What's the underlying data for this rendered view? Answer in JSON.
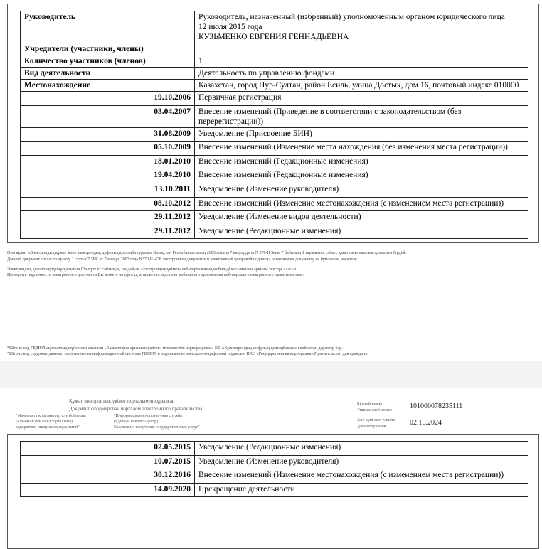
{
  "page1": {
    "info_rows": [
      {
        "label": "Руководитель",
        "value": [
          "Руководитель, назначенный (избранный) уполномоченным органом юридического лица",
          "12 июля 2015 года",
          "КУЗЬМЕНКО ЕВГЕНИЯ ГЕННАДЬЕВНА"
        ]
      },
      {
        "label": "Учредители (участники, члены)",
        "value": [
          ""
        ]
      },
      {
        "label": "Количество участников (членов)",
        "value": [
          "1"
        ]
      },
      {
        "label": "Вид деятельности",
        "value": [
          "Деятельность по управлению фондами"
        ]
      },
      {
        "label": "Местонахождение",
        "value": [
          "Казахстан, город Нур-Султан, район Есиль, улица Достык, дом 16, почтовый индекс 010000"
        ]
      }
    ],
    "history": [
      {
        "date": "19.10.2006",
        "event": "Первичная регистрация"
      },
      {
        "date": "03.04.2007",
        "event": "Внесение изменений (Приведение в соответствии с законодательством (без перерегистрации))"
      },
      {
        "date": "31.08.2009",
        "event": "Уведомление (Присвоение БИН)"
      },
      {
        "date": "05.10.2009",
        "event": "Внесение изменений (Изменение места нахождения (без изменения места регистрации))"
      },
      {
        "date": "18.01.2010",
        "event": "Внесение изменений (Редакционные изменения)"
      },
      {
        "date": "19.04.2010",
        "event": "Внесение изменений (Редакционные изменения)"
      },
      {
        "date": "13.10.2011",
        "event": "Уведомление (Изменение руководителя)"
      },
      {
        "date": "08.10.2012",
        "event": "Внесение изменений (Изменение местонахождения (с изменением места регистрации))"
      },
      {
        "date": "29.11.2012",
        "event": "Уведомление (Изменение видов деятельности)"
      },
      {
        "date": "29.11.2012",
        "event": "Уведомление (Редакционные изменения)"
      }
    ],
    "notes": [
      "Осы құжат «Электрондық құжат және электрондық цифрлық қолтаңба туралы» Қазақстан Республикасының 2003 жылғы 7 қаңтардағы N 370-II Заңы 7 бабының 1 тармағына сәйкес қағаз тасығыштағы құжатпен бірдей.",
      "Данный документ согласно пункту 1 статьи 7 ЗРК от 7 января 2003 года N370-II «Об электронном документе и электронной цифровой подписи» равнозначен документу на бумажном носителе.",
      "Электрондық құжаттың түпнұсқалығын Сіз egov.kz сайтында, сондай-ақ «электрондық үкімет» веб-порталының мобильді қосымшасы арқылы тексере аласыз.",
      "Проверить подлинность электронного документа Вы можете на egov.kz, а также посредством мобильного приложения веб-портала «электронного правительства»."
    ],
    "footnotes": [
      "*Штрих-код ГБДЮЛ ақпараттық жүйесінен алынған «Азаматтарға арналған үкімет» мемлекеттік корпорациясы» КЕ АҚ электрондық-цифрлық қолтаңбасымен қойылған деректер бар.",
      "*Штрих-код содержит данные, полученные из информационной системы ГБДЮЛ и подписанные электронно-цифровой подписью НАО «Государственная корпорация «Правительство для граждан»."
    ]
  },
  "page2": {
    "header": {
      "portal_kz": "Құжат электрондық үкімет порталымен құрылған",
      "portal_ru": "Документ сформирован порталом электронного правительства",
      "service_kz": [
        "\"Мемлекеттік қызметтер алу бойынша",
        "(Бірыңғай байланыс орталығы)",
        "ақпараттық-анықтамалық қызметі\""
      ],
      "service_ru": [
        "\"Информационно-справочная служба",
        "(Единый контакт-центр)",
        "Касательно получения государственных услуг\""
      ],
      "unique_label_kz": "Бірегей нөмір",
      "unique_label_ru": "Уникальный номер",
      "unique_number": "101000078235111",
      "date_label_kz": "Алу күні мен уақыты",
      "date_label_ru": "Дата получения",
      "date": "02.10.2024"
    },
    "history": [
      {
        "date": "02.05.2015",
        "event": "Уведомление (Редакционные изменения)"
      },
      {
        "date": "10.07.2015",
        "event": "Уведомление (Изменение руководителя)"
      },
      {
        "date": "30.12.2016",
        "event": "Внесение изменений (Изменение местонахождения (с изменением места регистрации))"
      },
      {
        "date": "14.09.2020",
        "event": "Прекращение деятельности"
      }
    ]
  }
}
